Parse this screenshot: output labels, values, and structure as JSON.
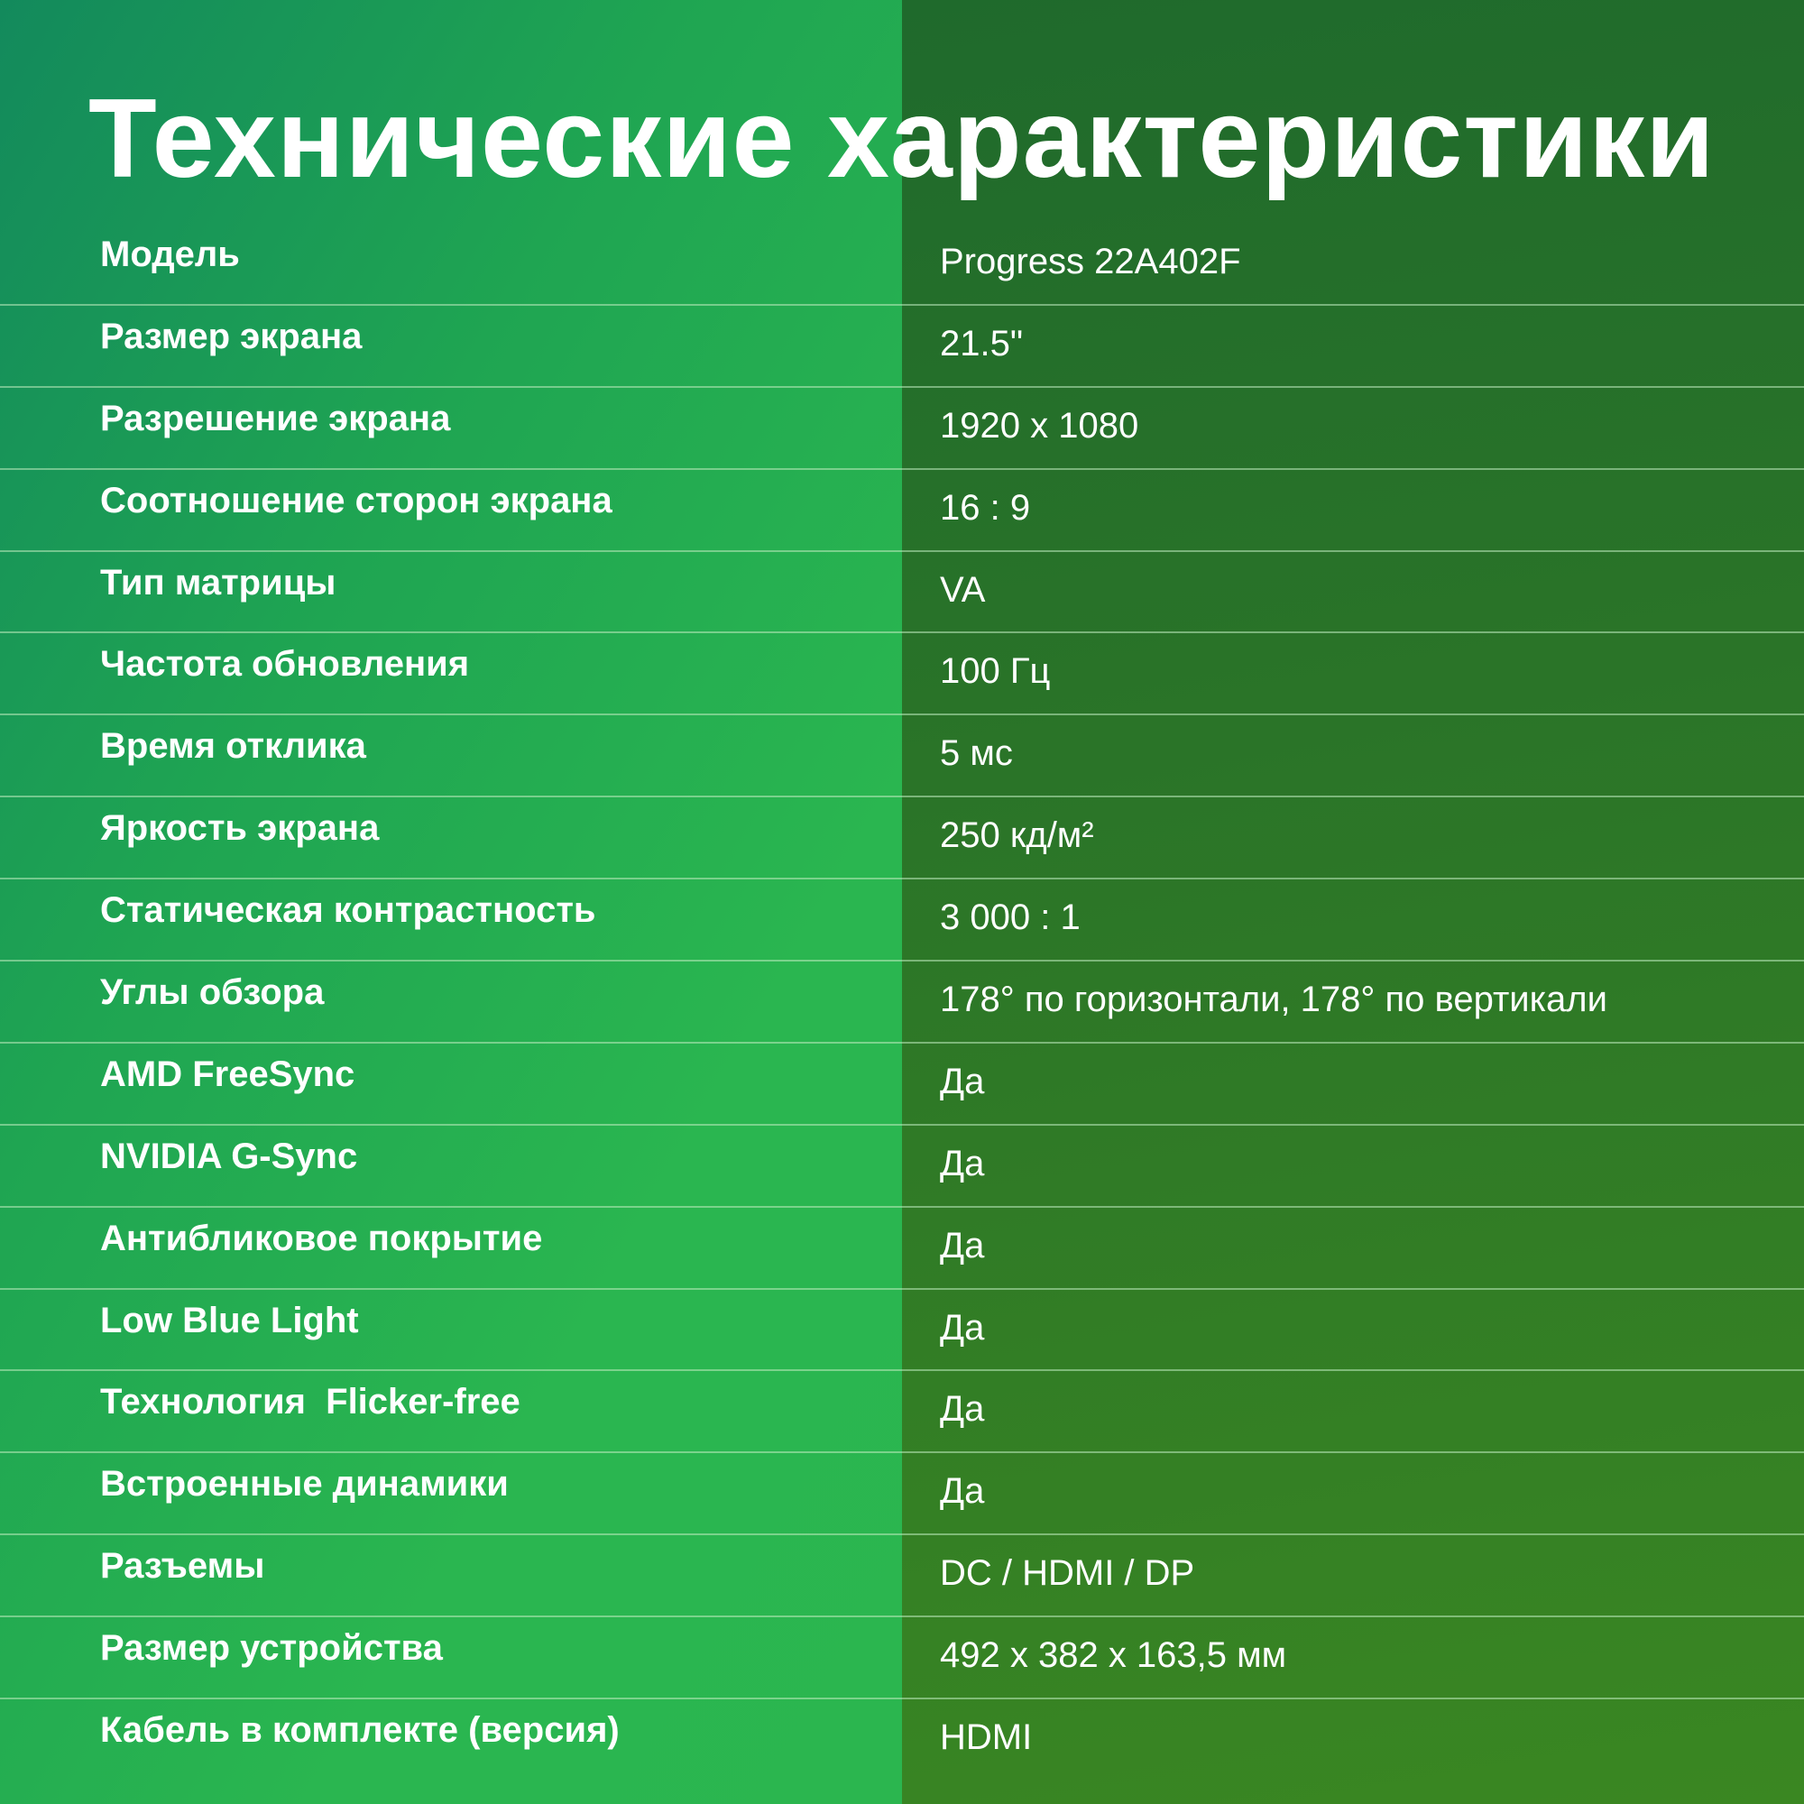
{
  "title": "Технические характеристики",
  "specs": [
    {
      "label": "Модель",
      "value": "Progress 22A402F"
    },
    {
      "label": "Размер экрана",
      "value": "21.5\""
    },
    {
      "label": "Разрешение экрана",
      "value": "1920 x 1080"
    },
    {
      "label": "Соотношение сторон экрана",
      "value": "16 : 9"
    },
    {
      "label": "Тип матрицы",
      "value": "VA"
    },
    {
      "label": "Частота обновления",
      "value": "100 Гц"
    },
    {
      "label": "Время отклика",
      "value": "5 мс"
    },
    {
      "label": "Яркость экрана",
      "value": "250 кд/м²"
    },
    {
      "label": "Статическая контрастность",
      "value": "3 000 : 1"
    },
    {
      "label": "Углы обзора",
      "value": "178° по горизонтали, 178° по вертикали"
    },
    {
      "label": "AMD FreeSync",
      "value": "Да"
    },
    {
      "label": "NVIDIA G-Sync",
      "value": "Да"
    },
    {
      "label": "Антибликовое покрытие",
      "value": "Да"
    },
    {
      "label": "Low Blue Light",
      "value": "Да"
    },
    {
      "label": "Технология  Flicker-free",
      "value": "Да"
    },
    {
      "label": "Встроенные динамики",
      "value": "Да"
    },
    {
      "label": "Разъемы",
      "value": "DC / HDMI / DP"
    },
    {
      "label": "Размер устройства",
      "value": "492 x 382 x 163,5 мм"
    },
    {
      "label": "Кабель в комплекте (версия)",
      "value": "HDMI"
    }
  ],
  "colors": {
    "left_panel": "#2ab650",
    "right_panel": "#2a7428",
    "text": "#ffffff"
  }
}
